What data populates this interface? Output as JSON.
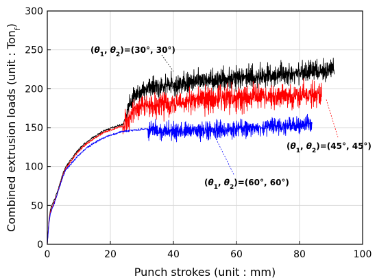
{
  "chart_data": {
    "type": "line",
    "title": "",
    "xlabel": "Punch strokes (unit : mm)",
    "ylabel": "Combined extrusion loads (unit : Ton",
    "ylabel_sub": "f",
    "ylabel_close": ")",
    "xlim": [
      0,
      100
    ],
    "ylim": [
      0,
      300
    ],
    "x_ticks": [
      0,
      20,
      40,
      60,
      80,
      100
    ],
    "y_ticks": [
      0,
      50,
      100,
      150,
      200,
      250,
      300
    ],
    "grid": true,
    "legend": "none",
    "series": [
      {
        "color": "#000000",
        "x": [
          0,
          0.5,
          1,
          2,
          3,
          4,
          5,
          6,
          8,
          10,
          12,
          14,
          16,
          18,
          20,
          22,
          24,
          25,
          26,
          28,
          30,
          32,
          35,
          40,
          45,
          50,
          55,
          60,
          65,
          70,
          75,
          80,
          85,
          88,
          91
        ],
        "y": [
          0,
          30,
          45,
          55,
          65,
          78,
          92,
          100,
          112,
          122,
          130,
          136,
          141,
          146,
          149,
          152,
          154,
          165,
          178,
          190,
          197,
          200,
          203,
          205,
          208,
          210,
          212,
          214,
          215,
          217,
          218,
          220,
          222,
          223,
          225
        ],
        "noise_start": 25,
        "noise_amp": 14
      },
      {
        "color": "#ff0000",
        "x": [
          0,
          0.5,
          1,
          2,
          3,
          4,
          5,
          6,
          8,
          10,
          12,
          14,
          16,
          18,
          20,
          22,
          24,
          25,
          26,
          28,
          30,
          32,
          35,
          40,
          45,
          50,
          55,
          60,
          65,
          70,
          75,
          80,
          85,
          87
        ],
        "y": [
          0,
          28,
          42,
          52,
          63,
          76,
          90,
          98,
          110,
          120,
          128,
          134,
          139,
          144,
          147,
          150,
          152,
          158,
          165,
          172,
          176,
          178,
          180,
          182,
          184,
          186,
          187,
          188,
          189,
          190,
          191,
          192,
          193,
          194
        ],
        "noise_start": 24,
        "noise_amp": 16
      },
      {
        "color": "#0000ff",
        "x": [
          0,
          0.5,
          1,
          2,
          3,
          4,
          5,
          6,
          8,
          10,
          12,
          14,
          16,
          18,
          20,
          22,
          24,
          26,
          28,
          30,
          32,
          34,
          36,
          40,
          45,
          50,
          55,
          60,
          65,
          70,
          75,
          80,
          84
        ],
        "y": [
          0,
          26,
          40,
          50,
          62,
          75,
          88,
          96,
          106,
          115,
          122,
          128,
          133,
          137,
          140,
          143,
          145,
          146,
          147,
          148,
          148,
          146,
          144,
          145,
          146,
          147,
          148,
          149,
          150,
          151,
          152,
          153,
          155
        ],
        "noise_start": 32,
        "noise_amp": 11
      }
    ],
    "annotations": [
      {
        "text_pre": "(",
        "t1": "θ",
        "s1": "1",
        "mid": ", ",
        "t2": "θ",
        "s2": "2",
        "text_post": ")=(30°, 30°)"
      },
      {
        "text_pre": "(",
        "t1": "θ",
        "s1": "1",
        "mid": ", ",
        "t2": "θ",
        "s2": "2",
        "text_post": ")=(45°, 45°)"
      },
      {
        "text_pre": "(",
        "t1": "θ",
        "s1": "1",
        "mid": ", ",
        "t2": "θ",
        "s2": "2",
        "text_post": ")=(60°, 60°)"
      }
    ]
  }
}
